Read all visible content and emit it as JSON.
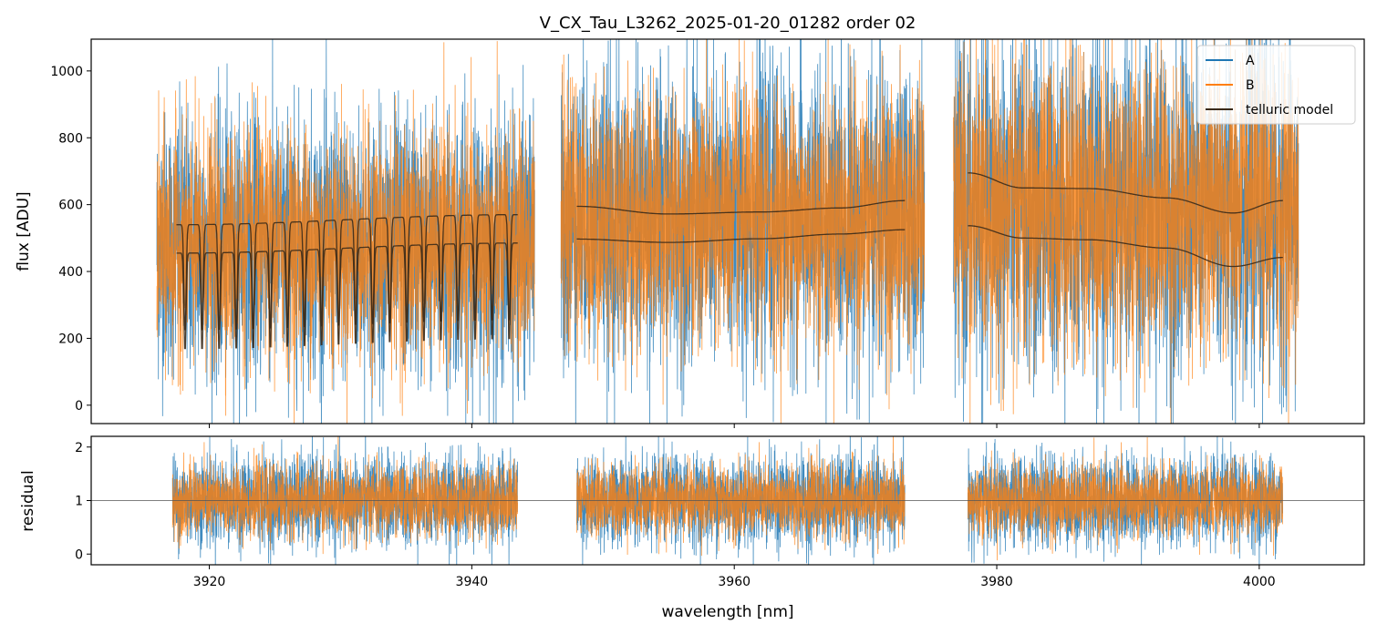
{
  "chart_data": [
    {
      "type": "line",
      "panel": "top",
      "title": "V_CX_Tau_L3262_2025-01-20_01282  order 02",
      "xlabel": "",
      "ylabel": "flux [ADU]",
      "xlim": [
        3911,
        4008
      ],
      "ylim": [
        -55,
        1095
      ],
      "yticks": [
        0,
        200,
        400,
        600,
        800,
        1000
      ],
      "xticks": [
        3920,
        3940,
        3960,
        3980,
        4000
      ],
      "legend_position": "top-right",
      "segments": [
        {
          "x_start": 3916.0,
          "x_end": 3944.8,
          "center": 480,
          "spread": 170
        },
        {
          "x_start": 3946.8,
          "x_end": 3974.5,
          "center": 560,
          "spread": 190
        },
        {
          "x_start": 3976.7,
          "x_end": 4003.0,
          "center": 590,
          "spread": 220
        }
      ],
      "series": [
        {
          "name": "A",
          "color": "#1f77b4"
        },
        {
          "name": "B",
          "color": "#ff7f0e"
        },
        {
          "name": "telluric model",
          "color": "#3a2a1a",
          "upper": [
            {
              "x": [
                3917.5,
                3943.5
              ],
              "y": [
                540,
                570
              ],
              "comb_lines": 20
            },
            {
              "x": [
                3948.0,
                3955.0,
                3962.0,
                3968.0,
                3973.0
              ],
              "y": [
                595,
                572,
                578,
                590,
                612
              ]
            },
            {
              "x": [
                3977.8,
                3982.0,
                3987.0,
                3993.0,
                3998.0,
                4001.8
              ],
              "y": [
                695,
                650,
                648,
                620,
                575,
                612
              ]
            }
          ],
          "lower": [
            {
              "x": [
                3917.5,
                3943.5
              ],
              "y": [
                455,
                485
              ],
              "comb_lines": 20
            },
            {
              "x": [
                3948.0,
                3955.0,
                3962.0,
                3968.0,
                3973.0
              ],
              "y": [
                497,
                487,
                498,
                512,
                525
              ]
            },
            {
              "x": [
                3977.8,
                3982.0,
                3987.0,
                3993.0,
                3998.0,
                4001.8
              ],
              "y": [
                537,
                500,
                495,
                470,
                415,
                442
              ]
            }
          ]
        }
      ]
    },
    {
      "type": "line",
      "panel": "bottom",
      "title": "",
      "xlabel": "wavelength [nm]",
      "ylabel": "residual",
      "xlim": [
        3911,
        4008
      ],
      "ylim": [
        -0.2,
        2.2
      ],
      "yticks": [
        0,
        1,
        2
      ],
      "xticks": [
        3920,
        3940,
        3960,
        3980,
        4000
      ],
      "reference_line": 1,
      "segments": [
        {
          "x_start": 3917.2,
          "x_end": 3943.5
        },
        {
          "x_start": 3948.0,
          "x_end": 3973.0
        },
        {
          "x_start": 3977.8,
          "x_end": 4001.8
        }
      ],
      "series": [
        {
          "name": "A",
          "color": "#1f77b4"
        },
        {
          "name": "B",
          "color": "#ff7f0e"
        }
      ]
    }
  ]
}
